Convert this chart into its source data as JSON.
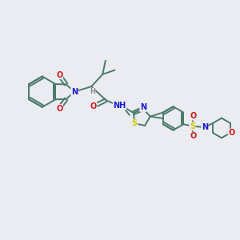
{
  "bg_color": "#ebebf2",
  "bond_color": "#4a7a6a",
  "bond_width": 1.4,
  "atom_colors": {
    "N": "#1a1acc",
    "O": "#cc1a1a",
    "S": "#cccc00",
    "H": "#888888",
    "C": "#4a7a6a"
  },
  "figsize": [
    3.0,
    3.0
  ],
  "dpi": 100
}
